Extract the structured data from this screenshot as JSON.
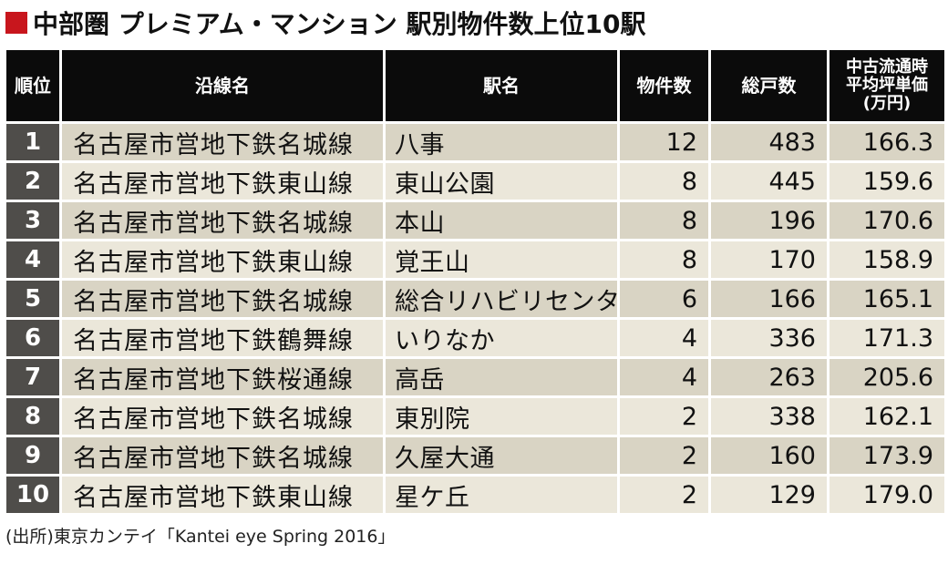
{
  "title": "中部圏 プレミアム・マンション 駅別物件数上位10駅",
  "title_mark_color": "#c8161d",
  "headers": {
    "rank": "順位",
    "line": "沿線名",
    "station": "駅名",
    "count": "物件数",
    "units": "総戸数",
    "price": "中古流通時\n平均坪単価\n(万円)"
  },
  "rows": [
    {
      "rank": "1",
      "line": "名古屋市営地下鉄名城線",
      "station": "八事",
      "count": "12",
      "units": "483",
      "price": "166.3"
    },
    {
      "rank": "2",
      "line": "名古屋市営地下鉄東山線",
      "station": "東山公園",
      "count": "8",
      "units": "445",
      "price": "159.6"
    },
    {
      "rank": "3",
      "line": "名古屋市営地下鉄名城線",
      "station": "本山",
      "count": "8",
      "units": "196",
      "price": "170.6"
    },
    {
      "rank": "4",
      "line": "名古屋市営地下鉄東山線",
      "station": "覚王山",
      "count": "8",
      "units": "170",
      "price": "158.9"
    },
    {
      "rank": "5",
      "line": "名古屋市営地下鉄名城線",
      "station": "総合リハビリセンター",
      "count": "6",
      "units": "166",
      "price": "165.1"
    },
    {
      "rank": "6",
      "line": "名古屋市営地下鉄鶴舞線",
      "station": "いりなか",
      "count": "4",
      "units": "336",
      "price": "171.3"
    },
    {
      "rank": "7",
      "line": "名古屋市営地下鉄桜通線",
      "station": "高岳",
      "count": "4",
      "units": "263",
      "price": "205.6"
    },
    {
      "rank": "8",
      "line": "名古屋市営地下鉄名城線",
      "station": "東別院",
      "count": "2",
      "units": "338",
      "price": "162.1"
    },
    {
      "rank": "9",
      "line": "名古屋市営地下鉄名城線",
      "station": "久屋大通",
      "count": "2",
      "units": "160",
      "price": "173.9"
    },
    {
      "rank": "10",
      "line": "名古屋市営地下鉄東山線",
      "station": "星ケ丘",
      "count": "2",
      "units": "129",
      "price": "179.0"
    }
  ],
  "source": "(出所)東京カンテイ「Kantei eye Spring 2016」"
}
